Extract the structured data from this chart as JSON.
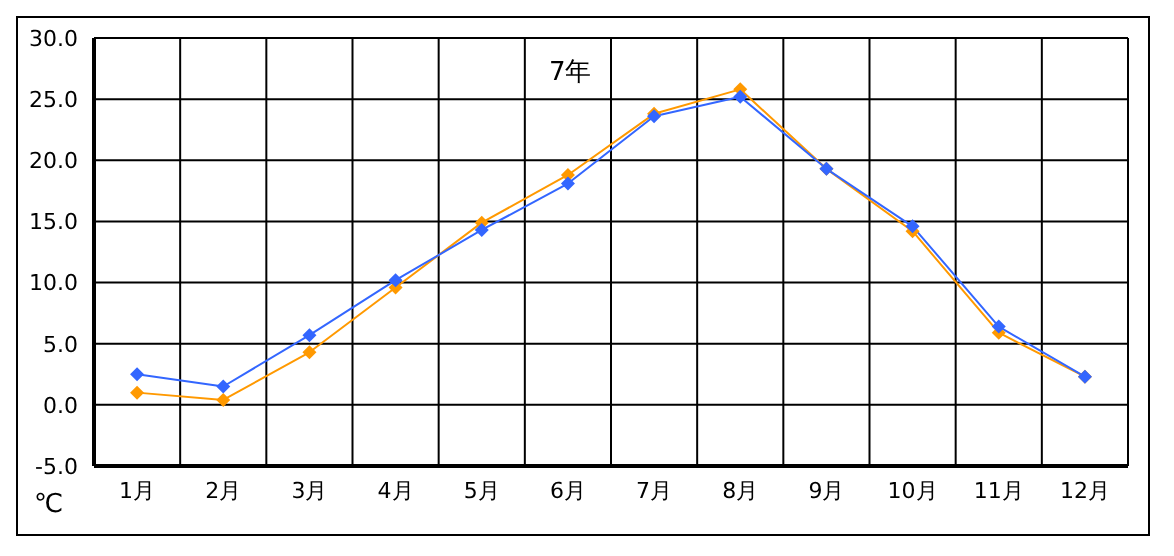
{
  "chart_data": {
    "type": "line",
    "title": "7年",
    "ylabel": "℃",
    "categories": [
      "1月",
      "2月",
      "3月",
      "4月",
      "5月",
      "6月",
      "7月",
      "8月",
      "9月",
      "10月",
      "11月",
      "12月"
    ],
    "series": [
      {
        "color": "#ff9900",
        "values": [
          1.0,
          0.4,
          4.3,
          9.6,
          14.9,
          18.8,
          23.8,
          25.8,
          19.3,
          14.2,
          5.9,
          2.3
        ]
      },
      {
        "color": "#3366ff",
        "values": [
          2.5,
          1.5,
          5.7,
          10.2,
          14.3,
          18.1,
          23.6,
          25.2,
          19.3,
          14.6,
          6.4,
          2.3
        ]
      }
    ],
    "ylim": [
      -5,
      30
    ],
    "yticks": [
      {
        "value": -5,
        "label": "-5.0"
      },
      {
        "value": 0,
        "label": "0.0"
      },
      {
        "value": 5,
        "label": "5.0"
      },
      {
        "value": 10,
        "label": "10.0"
      },
      {
        "value": 15,
        "label": "15.0"
      },
      {
        "value": 20,
        "label": "20.0"
      },
      {
        "value": 25,
        "label": "25.0"
      },
      {
        "value": 30,
        "label": "30.0"
      }
    ],
    "grid": true,
    "legend": false,
    "marker": "diamond",
    "line_style": "solid"
  }
}
